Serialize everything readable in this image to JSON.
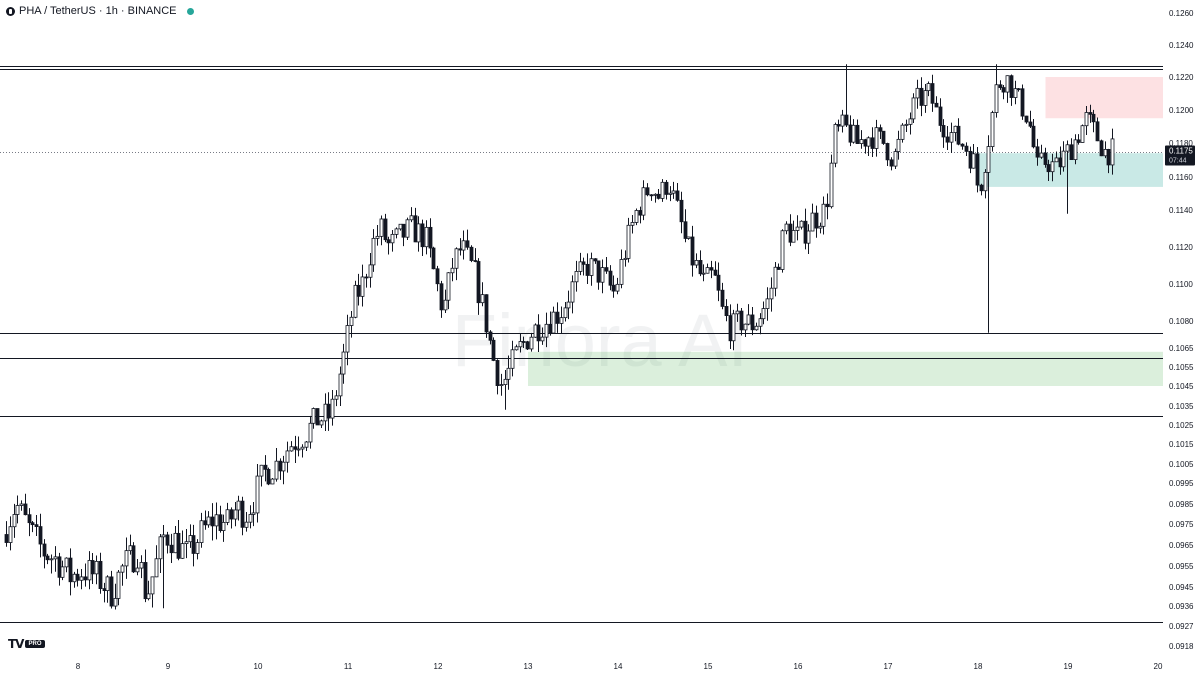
{
  "header": {
    "symbol": "PHA / TetherUS · 1h · BINANCE"
  },
  "logo": {
    "mark": "TV",
    "badge": "PRO"
  },
  "watermark": "Finora AI",
  "colors": {
    "candle": "#131722",
    "hline": "#131722",
    "green_zone": "rgba(76,175,80,0.2)",
    "teal_zone": "rgba(38,166,154,0.25)",
    "red_zone": "rgba(242,54,69,0.15)",
    "price_badge": "#131722",
    "live_dot": "#26a69a"
  },
  "chart_data": {
    "type": "candlestick",
    "title": "PHA / TetherUS · 1h · BINANCE",
    "x_ticks": [
      "8",
      "9",
      "10",
      "11",
      "12",
      "13",
      "14",
      "15",
      "16",
      "17",
      "18",
      "19",
      "20"
    ],
    "y_tick_labels": [
      "0.1260",
      "0.1240",
      "0.1220",
      "0.1200",
      "0.1180",
      "0.1160",
      "0.1140",
      "0.1120",
      "0.1100",
      "0.1080",
      "0.1065",
      "0.1055",
      "0.1045",
      "0.1035",
      "0.1025",
      "0.1015",
      "0.1005",
      "0.0995",
      "0.0985",
      "0.0975",
      "0.0965",
      "0.0955",
      "0.0945",
      "0.0936",
      "0.0927",
      "0.0918"
    ],
    "current_price": "0.1175",
    "countdown": "07:44",
    "horizontal_levels": [
      0.1227,
      0.1225,
      0.10735,
      0.10595,
      0.103,
      0.0929
    ],
    "zones": [
      {
        "kind": "demand",
        "from": 0.1045,
        "to": 0.1063,
        "color": "green",
        "start_day": 13.0
      },
      {
        "kind": "demand",
        "from": 0.1154,
        "to": 0.1174,
        "color": "teal",
        "start_day": 18.0
      },
      {
        "kind": "supply",
        "from": 0.1195,
        "to": 0.122,
        "color": "red",
        "start_day": 18.75
      }
    ],
    "path": [
      [
        7.2,
        0.097
      ],
      [
        7.35,
        0.0985
      ],
      [
        7.5,
        0.0972
      ],
      [
        7.65,
        0.0962
      ],
      [
        7.8,
        0.0958
      ],
      [
        7.95,
        0.095
      ],
      [
        8.1,
        0.0953
      ],
      [
        8.25,
        0.095
      ],
      [
        8.4,
        0.0942
      ],
      [
        8.55,
        0.0955
      ],
      [
        8.7,
        0.0962
      ],
      [
        8.8,
        0.094
      ],
      [
        8.9,
        0.0955
      ],
      [
        9.0,
        0.097
      ],
      [
        9.1,
        0.0968
      ],
      [
        9.25,
        0.096
      ],
      [
        9.4,
        0.097
      ],
      [
        9.55,
        0.0978
      ],
      [
        9.7,
        0.0975
      ],
      [
        9.8,
        0.0983
      ],
      [
        9.9,
        0.098
      ],
      [
        10.0,
        0.0988
      ],
      [
        10.1,
        0.1
      ],
      [
        10.25,
        0.1005
      ],
      [
        10.4,
        0.1015
      ],
      [
        10.55,
        0.102
      ],
      [
        10.7,
        0.1028
      ],
      [
        10.85,
        0.103
      ],
      [
        10.92,
        0.1045
      ],
      [
        11.0,
        0.1062
      ],
      [
        11.1,
        0.109
      ],
      [
        11.2,
        0.11
      ],
      [
        11.3,
        0.112
      ],
      [
        11.4,
        0.113
      ],
      [
        11.5,
        0.112
      ],
      [
        11.6,
        0.1125
      ],
      [
        11.75,
        0.113
      ],
      [
        11.9,
        0.1125
      ],
      [
        12.0,
        0.1105
      ],
      [
        12.1,
        0.1085
      ],
      [
        12.2,
        0.111
      ],
      [
        12.3,
        0.112
      ],
      [
        12.45,
        0.1105
      ],
      [
        12.55,
        0.1085
      ],
      [
        12.65,
        0.106
      ],
      [
        12.75,
        0.1045
      ],
      [
        12.85,
        0.1055
      ],
      [
        12.95,
        0.1065
      ],
      [
        13.1,
        0.1075
      ],
      [
        13.25,
        0.108
      ],
      [
        13.4,
        0.1085
      ],
      [
        13.55,
        0.11
      ],
      [
        13.7,
        0.111
      ],
      [
        13.85,
        0.1105
      ],
      [
        14.0,
        0.1095
      ],
      [
        14.1,
        0.1115
      ],
      [
        14.25,
        0.114
      ],
      [
        14.4,
        0.1155
      ],
      [
        14.5,
        0.1148
      ],
      [
        14.6,
        0.1158
      ],
      [
        14.7,
        0.114
      ],
      [
        14.8,
        0.112
      ],
      [
        14.9,
        0.111
      ],
      [
        15.0,
        0.11
      ],
      [
        15.1,
        0.1105
      ],
      [
        15.2,
        0.1085
      ],
      [
        15.3,
        0.1075
      ],
      [
        15.4,
        0.108
      ],
      [
        15.55,
        0.1078
      ],
      [
        15.7,
        0.109
      ],
      [
        15.8,
        0.111
      ],
      [
        15.9,
        0.113
      ],
      [
        16.05,
        0.1125
      ],
      [
        16.2,
        0.1135
      ],
      [
        16.35,
        0.114
      ],
      [
        16.45,
        0.1185
      ],
      [
        16.55,
        0.119
      ],
      [
        16.7,
        0.118
      ],
      [
        16.85,
        0.1185
      ],
      [
        17.0,
        0.118
      ],
      [
        17.1,
        0.117
      ],
      [
        17.2,
        0.1185
      ],
      [
        17.35,
        0.1205
      ],
      [
        17.5,
        0.121
      ],
      [
        17.6,
        0.1195
      ],
      [
        17.75,
        0.1185
      ],
      [
        17.9,
        0.1178
      ],
      [
        18.0,
        0.1168
      ],
      [
        18.05,
        0.115
      ],
      [
        18.15,
        0.118
      ],
      [
        18.25,
        0.1215
      ],
      [
        18.35,
        0.122
      ],
      [
        18.5,
        0.1205
      ],
      [
        18.6,
        0.1195
      ],
      [
        18.7,
        0.1165
      ],
      [
        18.8,
        0.117
      ],
      [
        18.9,
        0.1165
      ],
      [
        19.0,
        0.1172
      ],
      [
        19.1,
        0.118
      ],
      [
        19.25,
        0.1195
      ],
      [
        19.35,
        0.1185
      ],
      [
        19.45,
        0.1175
      ],
      [
        19.52,
        0.1175
      ]
    ],
    "extreme_wicks": [
      {
        "day": 8.95,
        "low": 0.0935
      },
      {
        "day": 12.75,
        "low": 0.1033
      },
      {
        "day": 16.55,
        "high": 0.1228
      },
      {
        "day": 18.12,
        "low": 0.10735
      },
      {
        "day": 18.22,
        "high": 0.1228
      },
      {
        "day": 19.0,
        "low": 0.1138
      }
    ]
  }
}
